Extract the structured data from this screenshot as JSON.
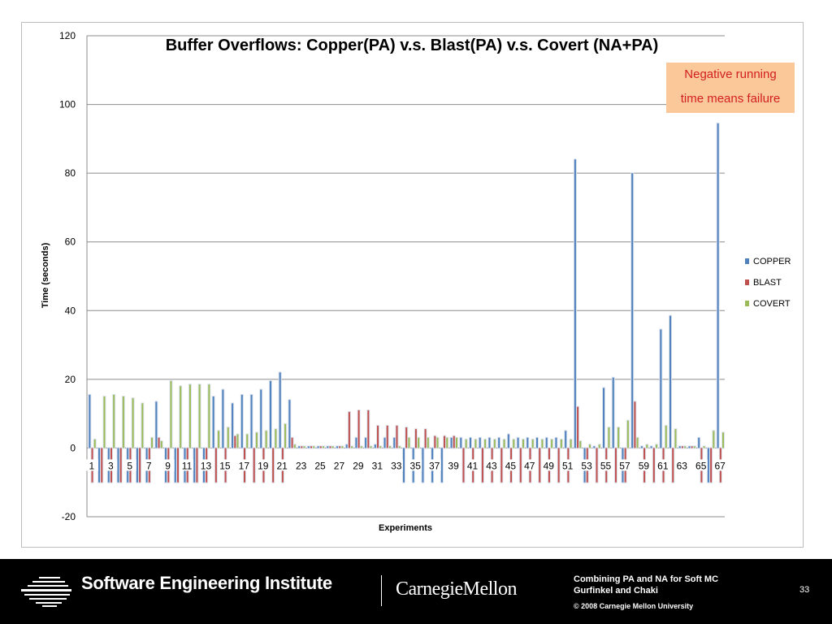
{
  "chart_data": {
    "type": "bar",
    "title": "Buffer Overflows: Copper(PA) v.s. Blast(PA) v.s. Covert (NA+PA)",
    "xlabel": "Experiments",
    "ylabel": "Time (seconds)",
    "ylim": [
      -20,
      120
    ],
    "yticks": [
      -20,
      0,
      20,
      40,
      60,
      80,
      100,
      120
    ],
    "grid": true,
    "legend_position": "right",
    "x_tick_labels": [
      "1",
      "3",
      "5",
      "7",
      "9",
      "11",
      "13",
      "15",
      "17",
      "19",
      "21",
      "23",
      "25",
      "27",
      "29",
      "31",
      "33",
      "35",
      "37",
      "39",
      "41",
      "43",
      "45",
      "47",
      "49",
      "51",
      "53",
      "55",
      "57",
      "59",
      "61",
      "63",
      "65",
      "67"
    ],
    "categories": [
      "1",
      "2",
      "3",
      "4",
      "5",
      "6",
      "7",
      "8",
      "9",
      "10",
      "11",
      "12",
      "13",
      "14",
      "15",
      "16",
      "17",
      "18",
      "19",
      "20",
      "21",
      "22",
      "23",
      "24",
      "25",
      "26",
      "27",
      "28",
      "29",
      "30",
      "31",
      "32",
      "33",
      "34",
      "35",
      "36",
      "37",
      "38",
      "39",
      "40",
      "41",
      "42",
      "43",
      "44",
      "45",
      "46",
      "47",
      "48",
      "49",
      "50",
      "51",
      "52",
      "53",
      "54",
      "55",
      "56",
      "57",
      "58",
      "59",
      "60",
      "61",
      "62",
      "63",
      "64",
      "65",
      "66",
      "67"
    ],
    "series": [
      {
        "name": "COPPER",
        "color": "#4f81bd",
        "values": [
          15.5,
          -10,
          -10,
          -10,
          -10,
          -10,
          -10,
          13.5,
          -10,
          -10,
          -10,
          -10,
          -10,
          15,
          17,
          13,
          15.5,
          15.5,
          17,
          19.5,
          22,
          14,
          0.5,
          0.5,
          0.5,
          0.5,
          0.5,
          1,
          3,
          3,
          1,
          3,
          3,
          -10,
          -10,
          -10,
          -10,
          -10,
          3,
          3,
          3,
          3,
          3,
          3,
          4,
          3,
          3,
          3,
          3,
          3,
          5,
          84,
          -10,
          0.5,
          17.5,
          20.5,
          -10,
          80,
          0.5,
          0.5,
          34.5,
          38.5,
          0.5,
          0.5,
          3,
          -10,
          94.5
        ]
      },
      {
        "name": "BLAST",
        "color": "#c0504d",
        "values": [
          -10,
          -10,
          -10,
          -10,
          -10,
          -10,
          -10,
          3,
          -10,
          -10,
          -10,
          -10,
          -10,
          -10,
          -10,
          3.5,
          -10,
          -10,
          -10,
          -10,
          -10,
          3,
          0.5,
          0.5,
          0.5,
          0.5,
          0.5,
          10.5,
          11,
          11,
          6.5,
          6.5,
          6.5,
          6,
          5.5,
          5.5,
          3.5,
          3.5,
          3.5,
          -10,
          -10,
          -10,
          -10,
          -10,
          -10,
          -10,
          -10,
          -10,
          -10,
          -10,
          -10,
          12,
          -10,
          -10,
          -10,
          -10,
          -10,
          13.5,
          -10,
          -10,
          -10,
          -10,
          0.5,
          0.5,
          -10,
          -10,
          -10
        ]
      },
      {
        "name": "COVERT",
        "color": "#9bbb59",
        "values": [
          2.5,
          15,
          15.5,
          15,
          14.5,
          13,
          3,
          2,
          19.5,
          18,
          18.5,
          18.5,
          18.5,
          5,
          6,
          4,
          4,
          4.5,
          5,
          5.5,
          7,
          1,
          0.5,
          0.5,
          0.5,
          0.5,
          0.5,
          0.5,
          0.5,
          0.5,
          0.5,
          0.5,
          0.5,
          3,
          3,
          3,
          3,
          3,
          3,
          2.5,
          2.5,
          2.5,
          2.5,
          2.5,
          2.5,
          2.5,
          2.5,
          2.5,
          2.5,
          2.5,
          2.5,
          2,
          1,
          1,
          6,
          6,
          8,
          3,
          1,
          1,
          6.5,
          5.5,
          0.5,
          0.5,
          0.5,
          5,
          4.5
        ]
      }
    ]
  },
  "annotation": {
    "line1": "Negative running",
    "line2": "time means failure"
  },
  "footer": {
    "institute": "Software Engineering Institute",
    "university": "CarnegieMellon",
    "info_line1": "Combining PA and NA for Soft MC",
    "info_line2": "Gurfinkel and Chaki",
    "copyright": "© 2008 Carnegie Mellon University",
    "page_number": "33"
  }
}
